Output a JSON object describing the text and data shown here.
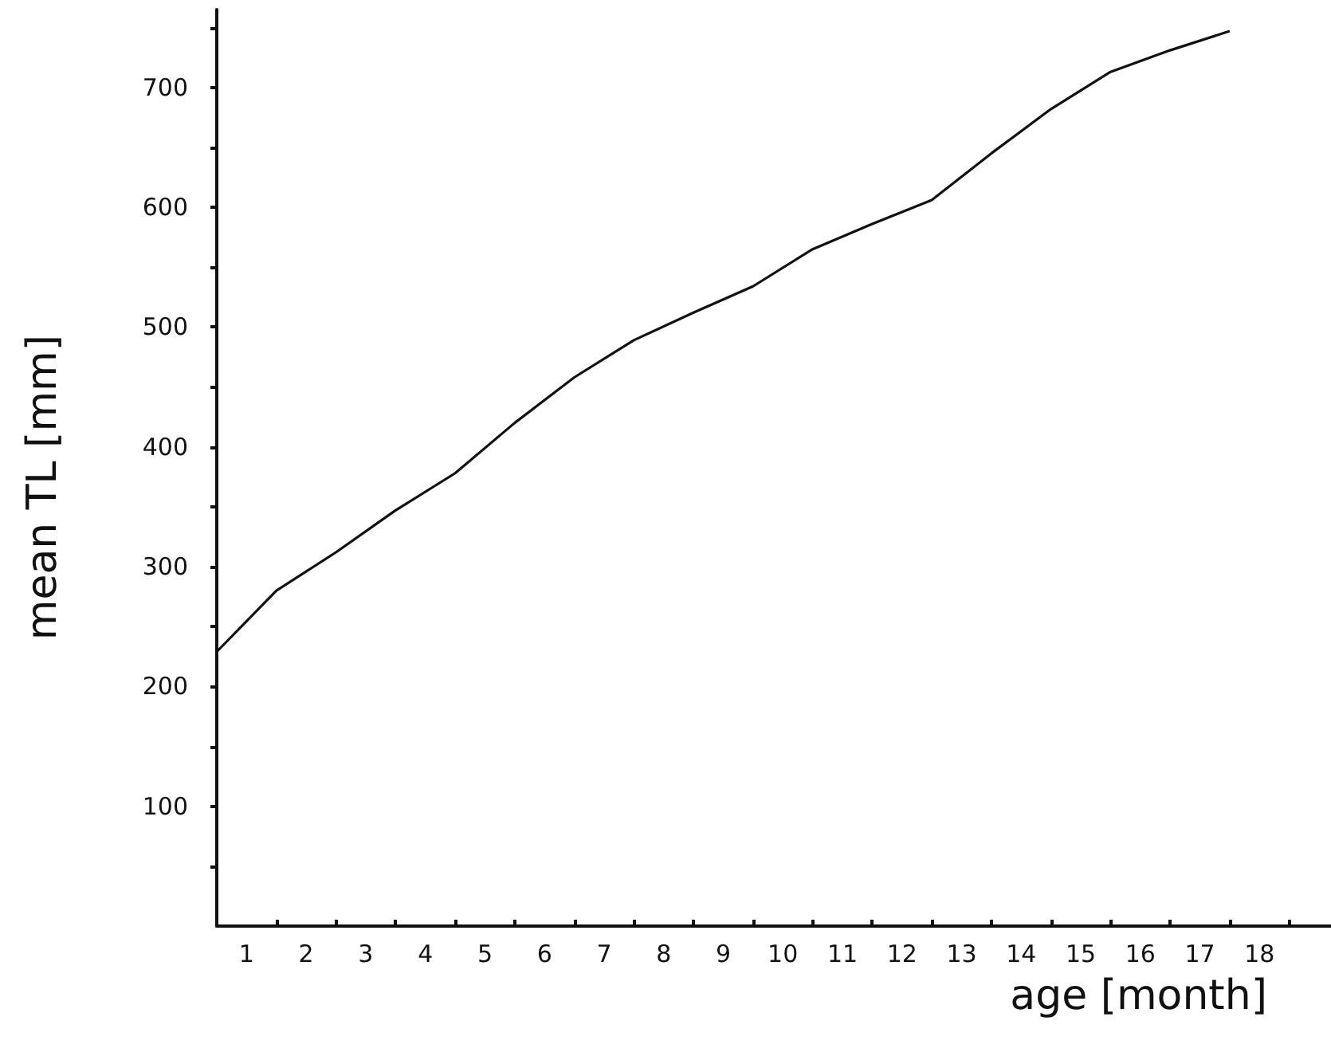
{
  "chart_data": {
    "type": "line",
    "xlabel": "age [month]",
    "ylabel": "mean TL [mm]",
    "x": [
      0,
      1,
      2,
      3,
      4,
      5,
      6,
      7,
      8,
      9,
      10,
      11,
      12,
      13,
      14,
      15,
      16,
      17
    ],
    "series": [
      {
        "color": "#111111",
        "values": [
          229,
          280,
          312,
          347,
          378,
          420,
          458,
          489,
          512,
          534,
          565,
          586,
          606,
          645,
          682,
          713,
          731,
          747
        ]
      }
    ],
    "xlim": [
      0,
      18.7
    ],
    "xticks": [
      {
        "value": 0.5,
        "label": "1"
      },
      {
        "value": 1,
        "label": null
      },
      {
        "value": 1.5,
        "label": "2"
      },
      {
        "value": 2,
        "label": null
      },
      {
        "value": 2.5,
        "label": "3"
      },
      {
        "value": 3,
        "label": null
      },
      {
        "value": 3.5,
        "label": "4"
      },
      {
        "value": 4,
        "label": null
      },
      {
        "value": 4.5,
        "label": "5"
      },
      {
        "value": 5,
        "label": null
      },
      {
        "value": 5.5,
        "label": "6"
      },
      {
        "value": 6,
        "label": null
      },
      {
        "value": 6.5,
        "label": "7"
      },
      {
        "value": 7,
        "label": null
      },
      {
        "value": 7.5,
        "label": "8"
      },
      {
        "value": 8,
        "label": null
      },
      {
        "value": 8.5,
        "label": "9"
      },
      {
        "value": 9,
        "label": null
      },
      {
        "value": 9.5,
        "label": "10"
      },
      {
        "value": 10,
        "label": null
      },
      {
        "value": 10.5,
        "label": "11"
      },
      {
        "value": 11,
        "label": null
      },
      {
        "value": 11.5,
        "label": "12"
      },
      {
        "value": 12,
        "label": null
      },
      {
        "value": 12.5,
        "label": "13"
      },
      {
        "value": 13,
        "label": null
      },
      {
        "value": 13.5,
        "label": "14"
      },
      {
        "value": 14,
        "label": null
      },
      {
        "value": 14.5,
        "label": "15"
      },
      {
        "value": 15,
        "label": null
      },
      {
        "value": 15.5,
        "label": "16"
      },
      {
        "value": 16,
        "label": null
      },
      {
        "value": 16.5,
        "label": "17"
      },
      {
        "value": 17,
        "label": null
      },
      {
        "value": 17.5,
        "label": "18"
      },
      {
        "value": 18,
        "label": null
      }
    ],
    "ylim": [
      0,
      765
    ],
    "yticks": [
      {
        "value": 50,
        "label": null
      },
      100,
      {
        "value": 150,
        "label": null
      },
      200,
      {
        "value": 250,
        "label": null
      },
      300,
      {
        "value": 350,
        "label": null
      },
      400,
      {
        "value": 450,
        "label": null
      },
      500,
      {
        "value": 550,
        "label": null
      },
      600,
      {
        "value": 650,
        "label": null
      },
      700,
      {
        "value": 750,
        "label": null
      }
    ],
    "grid": false,
    "marker": "none",
    "line_style": "solid"
  }
}
